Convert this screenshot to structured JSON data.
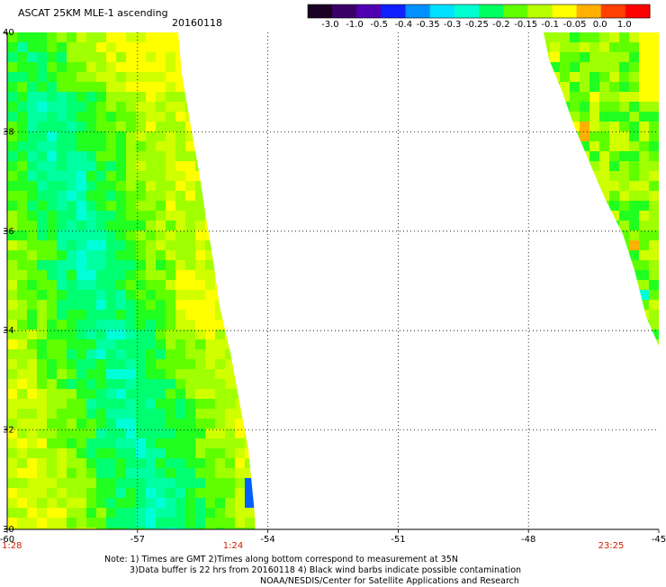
{
  "header": {
    "title": "ASCAT 25KM MLE-1 ascending",
    "date": "20160118"
  },
  "colorbar": {
    "labels": [
      "-3.0",
      "-1.0",
      "-0.5",
      "-0.4",
      "-0.35",
      "-0.3",
      "-0.25",
      "-0.2",
      "-0.15",
      "-0.1",
      "-0.05",
      "0.0",
      "1.0"
    ],
    "colors": [
      "#1a0022",
      "#3a006a",
      "#5000b0",
      "#1020ff",
      "#0090ff",
      "#00e0ff",
      "#00ffd0",
      "#00ff60",
      "#60ff00",
      "#b8ff00",
      "#ffff00",
      "#ffb000",
      "#ff4000",
      "#ff0000"
    ]
  },
  "map": {
    "lon_range": [
      -60,
      -45
    ],
    "lat_range": [
      30,
      40
    ],
    "lon_ticks": [
      "-60",
      "-57",
      "-54",
      "-51",
      "-48",
      "-45"
    ],
    "lat_ticks": [
      "40",
      "38",
      "36",
      "34",
      "32",
      "30"
    ],
    "time_labels": {
      "left": "1:28",
      "middle": "1:24",
      "right": "23:25"
    }
  },
  "notes": [
    "Note: 1) Times are GMT 2)Times along bottom correspond to measurement at 35N",
    "3)Data buffer is 22 hrs from 20160118 4) Black wind barbs indicate possible contamination",
    "NOAA/NESDIS/Center for Satellite Applications and Research"
  ]
}
